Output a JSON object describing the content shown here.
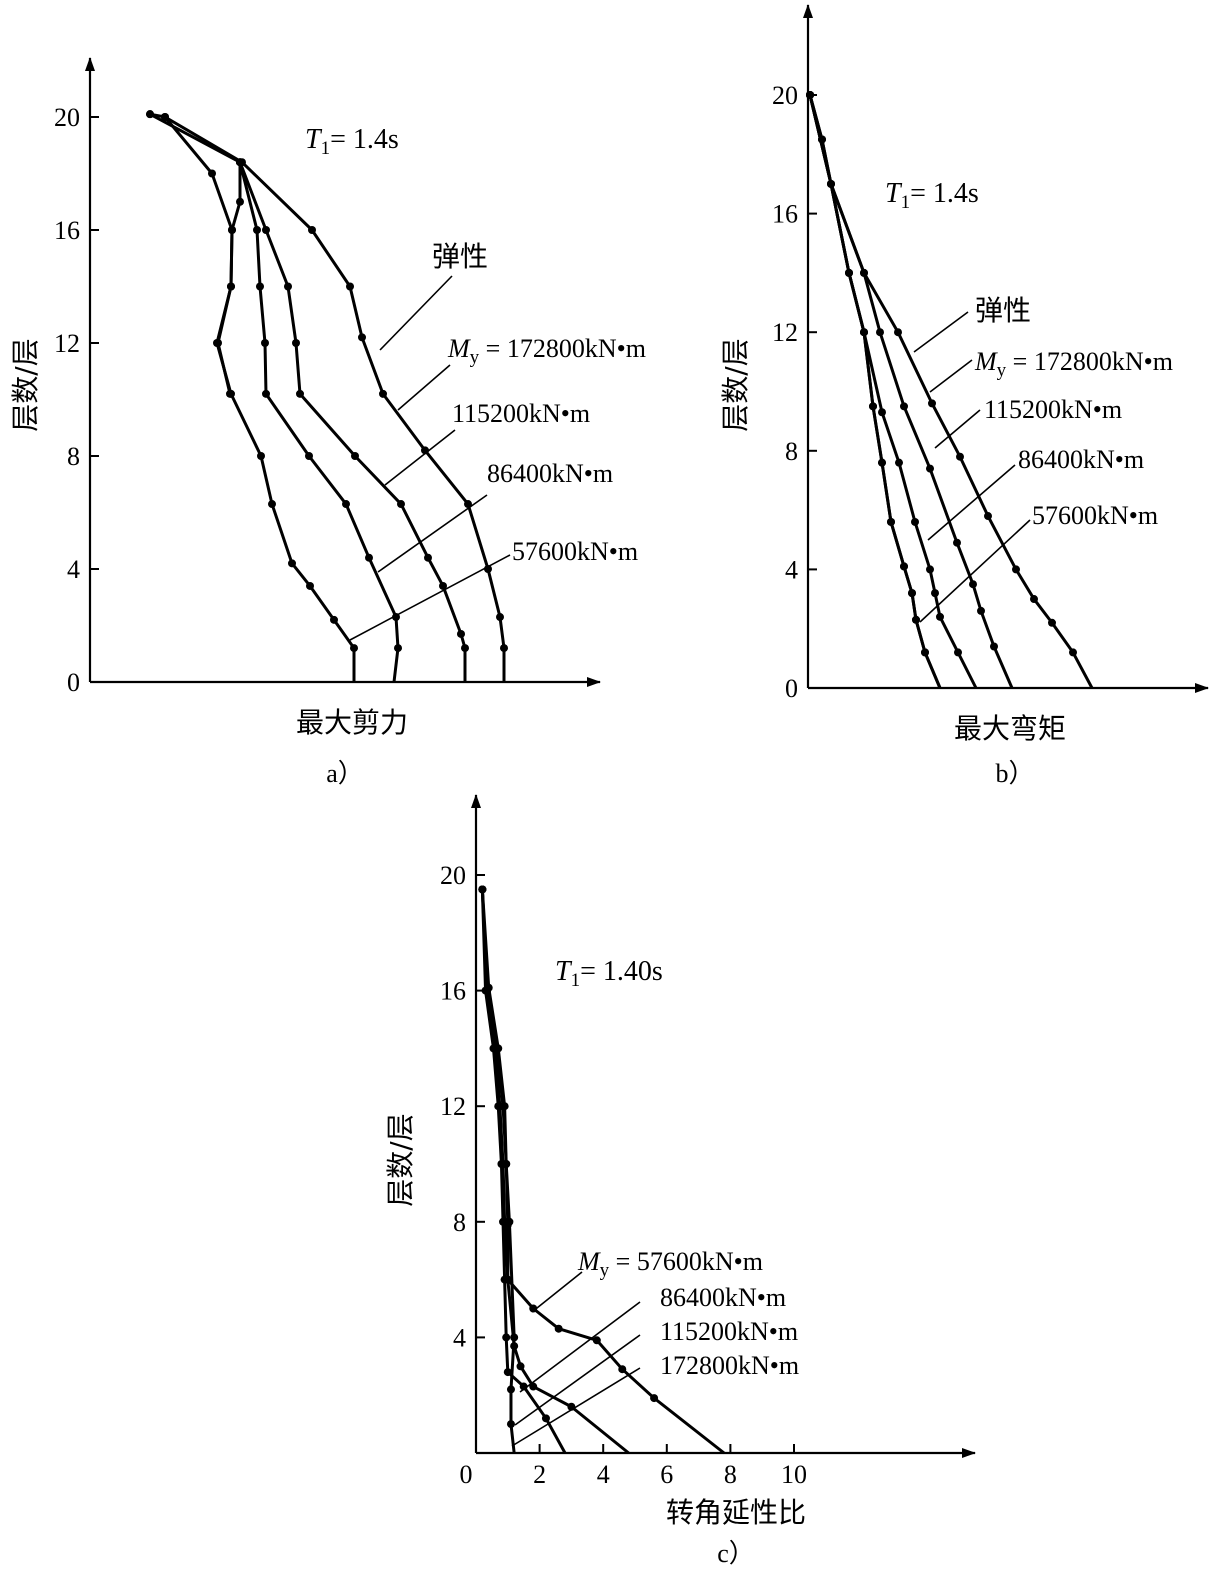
{
  "chart_data": [
    {
      "id": "a",
      "type": "line",
      "panel_label": "a）",
      "xlabel": "最大剪力",
      "ylabel": "层数/层",
      "annotation": {
        "prefix": "T",
        "sub": "1",
        "suffix": "= 1.4s"
      },
      "yticks": [
        "0",
        "4",
        "8",
        "12",
        "16",
        "20"
      ],
      "ylim": [
        0,
        21
      ],
      "grid": false,
      "series": [
        {
          "name": "弹性",
          "label_prefix": "",
          "points": [
            [
              165,
              20
            ],
            [
              242,
              18.4
            ],
            [
              312,
              16
            ],
            [
              350,
              14
            ],
            [
              362,
              12.2
            ],
            [
              383,
              10.2
            ],
            [
              425,
              8.2
            ],
            [
              468,
              6.3
            ],
            [
              488,
              4
            ],
            [
              500,
              2.3
            ],
            [
              504,
              1.2
            ],
            [
              504,
              0
            ]
          ]
        },
        {
          "name": "172800kN•m",
          "label_prefix": "M",
          "label_sub": "y",
          "points": [
            [
              150,
              20.1
            ],
            [
              240,
              18.4
            ],
            [
              266,
              16
            ],
            [
              288,
              14
            ],
            [
              296,
              12
            ],
            [
              300,
              10.2
            ],
            [
              355,
              8
            ],
            [
              401,
              6.3
            ],
            [
              428,
              4.4
            ],
            [
              443,
              3.4
            ],
            [
              461,
              1.7
            ],
            [
              465,
              1.2
            ],
            [
              465,
              0
            ]
          ]
        },
        {
          "name": "115200kN•m",
          "points": [
            [
              240,
              18.4
            ],
            [
              257,
              16
            ],
            [
              260,
              14
            ],
            [
              265,
              12
            ],
            [
              266,
              10.2
            ],
            [
              309,
              8
            ],
            [
              346,
              6.3
            ],
            [
              369,
              4.4
            ],
            [
              396,
              2.3
            ],
            [
              398,
              1.2
            ],
            [
              394,
              0
            ]
          ]
        },
        {
          "name": "86400kN•m",
          "points": [
            [
              240,
              18.4
            ],
            [
              240,
              17
            ],
            [
              232,
              16
            ],
            [
              231,
              14
            ],
            [
              217,
              12
            ],
            [
              231,
              10.2
            ],
            [
              261,
              8
            ],
            [
              272,
              6.3
            ],
            [
              292,
              4.2
            ],
            [
              310,
              3.4
            ],
            [
              334,
              2.2
            ],
            [
              354,
              1.2
            ],
            [
              354,
              0
            ]
          ]
        },
        {
          "name": "57600kN•m",
          "points": [
            [
              150,
              20.1
            ],
            [
              165,
              20
            ],
            [
              212,
              18
            ],
            [
              232,
              16
            ],
            [
              231,
              14
            ],
            [
              218,
              12
            ],
            [
              230,
              10.2
            ]
          ]
        }
      ]
    },
    {
      "id": "b",
      "type": "line",
      "panel_label": "b）",
      "xlabel": "最大弯矩",
      "ylabel": "层数/层",
      "annotation": {
        "prefix": "T",
        "sub": "1",
        "suffix": "= 1.4s"
      },
      "yticks": [
        "0",
        "4",
        "8",
        "12",
        "16",
        "20"
      ],
      "ylim": [
        0,
        21
      ],
      "grid": false,
      "series": [
        {
          "name": "弹性",
          "label_prefix": "",
          "points": [
            [
              810,
              20
            ],
            [
              831,
              17
            ],
            [
              864,
              14
            ],
            [
              898,
              12
            ],
            [
              932,
              9.6
            ],
            [
              960,
              7.8
            ],
            [
              988,
              5.8
            ],
            [
              1016,
              4
            ],
            [
              1034,
              3
            ],
            [
              1052,
              2.2
            ],
            [
              1073,
              1.2
            ],
            [
              1092,
              0
            ]
          ]
        },
        {
          "name": "172800kN•m",
          "label_prefix": "M",
          "label_sub": "y",
          "points": [
            [
              810,
              20
            ],
            [
              831,
              17
            ],
            [
              864,
              14
            ],
            [
              880,
              12
            ],
            [
              904,
              9.5
            ],
            [
              930,
              7.4
            ],
            [
              957,
              4.9
            ],
            [
              973,
              3.5
            ],
            [
              981,
              2.6
            ],
            [
              994,
              1.4
            ],
            [
              1012,
              0
            ]
          ]
        },
        {
          "name": "115200kN•m",
          "points": [
            [
              810,
              20
            ],
            [
              831,
              17
            ],
            [
              849,
              14
            ],
            [
              864,
              12
            ],
            [
              882,
              9.3
            ],
            [
              899,
              7.6
            ],
            [
              915,
              5.6
            ],
            [
              930,
              4
            ],
            [
              935,
              3.2
            ],
            [
              940,
              2.4
            ],
            [
              958,
              1.2
            ],
            [
              976,
              0
            ]
          ]
        },
        {
          "name": "86400kN•m",
          "points": [
            [
              810,
              20
            ],
            [
              822,
              18.5
            ],
            [
              849,
              14
            ],
            [
              864,
              12
            ],
            [
              873,
              9.5
            ],
            [
              882,
              7.6
            ],
            [
              891,
              5.6
            ],
            [
              904,
              4.1
            ],
            [
              912,
              3.2
            ],
            [
              916,
              2.3
            ],
            [
              925,
              1.2
            ],
            [
              940,
              0
            ]
          ]
        },
        {
          "name": "57600kN•m",
          "points": [
            [
              810,
              20
            ],
            [
              822,
              18.5
            ],
            [
              849,
              14
            ],
            [
              864,
              12
            ],
            [
              873,
              9.5
            ],
            [
              882,
              7.6
            ],
            [
              891,
              5.6
            ],
            [
              904,
              4.1
            ],
            [
              912,
              3.2
            ],
            [
              916,
              2.3
            ],
            [
              925,
              1.2
            ],
            [
              940,
              0
            ]
          ]
        }
      ]
    },
    {
      "id": "c",
      "type": "line",
      "panel_label": "c）",
      "xlabel": "转角延性比",
      "ylabel": "层数/层",
      "annotation": {
        "prefix": "T",
        "sub": "1",
        "suffix": "= 1.40s"
      },
      "xticks": [
        "0",
        "2",
        "4",
        "6",
        "8",
        "10"
      ],
      "yticks": [
        "4",
        "8",
        "12",
        "16",
        "20"
      ],
      "xlim": [
        0,
        15
      ],
      "ylim": [
        0,
        22
      ],
      "grid": false,
      "series": [
        {
          "name": "57600kN•m",
          "label_prefix": "M",
          "label_sub": "y",
          "points": [
            [
              0.2,
              19.5
            ],
            [
              0.4,
              16.1
            ],
            [
              0.7,
              14
            ],
            [
              0.9,
              12
            ],
            [
              0.95,
              10
            ],
            [
              1.0,
              7.9
            ],
            [
              1.0,
              6
            ],
            [
              1.8,
              5
            ],
            [
              2.6,
              4.3
            ],
            [
              3.8,
              3.9
            ],
            [
              4.6,
              2.9
            ],
            [
              5.6,
              1.9
            ],
            [
              7.8,
              0
            ]
          ]
        },
        {
          "name": "86400kN•m",
          "points": [
            [
              0.2,
              19.5
            ],
            [
              0.35,
              16
            ],
            [
              0.6,
              14
            ],
            [
              0.75,
              12
            ],
            [
              0.85,
              10
            ],
            [
              0.9,
              8
            ],
            [
              1.0,
              6
            ],
            [
              1.2,
              3.7
            ],
            [
              1.4,
              3
            ],
            [
              1.8,
              2.3
            ],
            [
              3,
              1.6
            ],
            [
              4.8,
              0
            ]
          ]
        },
        {
          "name": "115200kN•m",
          "points": [
            [
              0.2,
              19.5
            ],
            [
              0.3,
              16
            ],
            [
              0.55,
              14
            ],
            [
              0.7,
              12
            ],
            [
              0.8,
              10
            ],
            [
              0.85,
              8
            ],
            [
              0.9,
              6
            ],
            [
              0.95,
              4
            ],
            [
              1.0,
              2.8
            ],
            [
              1.5,
              2.3
            ],
            [
              2.2,
              1.2
            ],
            [
              2.8,
              0
            ]
          ]
        },
        {
          "name": "172800kN•m",
          "points": [
            [
              0.2,
              19.5
            ],
            [
              0.35,
              16
            ],
            [
              0.65,
              14
            ],
            [
              0.85,
              12
            ],
            [
              0.95,
              10
            ],
            [
              1.05,
              8
            ],
            [
              1.2,
              4
            ],
            [
              1.1,
              2.2
            ],
            [
              1.1,
              1
            ],
            [
              1.2,
              0
            ]
          ]
        }
      ]
    }
  ]
}
